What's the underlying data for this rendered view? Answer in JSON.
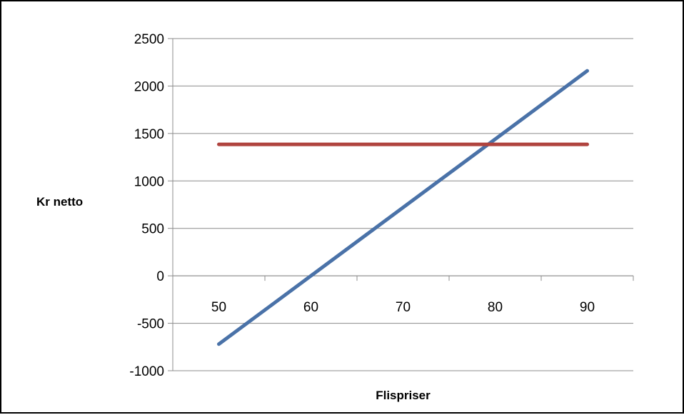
{
  "chart_data": {
    "type": "line",
    "xlabel": "Flispriser",
    "ylabel": "Kr netto",
    "x": [
      50,
      60,
      70,
      80,
      90
    ],
    "xticks": [
      "50",
      "60",
      "70",
      "80",
      "90"
    ],
    "yticks": [
      "2500",
      "2000",
      "1500",
      "1000",
      "500",
      "0",
      "-500",
      "-1000"
    ],
    "ylim": [
      -1000,
      2500
    ],
    "grid": "horizontal",
    "legend": "none",
    "series": [
      {
        "color": "#4A72A8",
        "values": [
          -720,
          0,
          720,
          1440,
          2160
        ]
      },
      {
        "color": "#B0443F",
        "values": [
          1385,
          1385,
          1385,
          1385,
          1385
        ]
      }
    ]
  }
}
